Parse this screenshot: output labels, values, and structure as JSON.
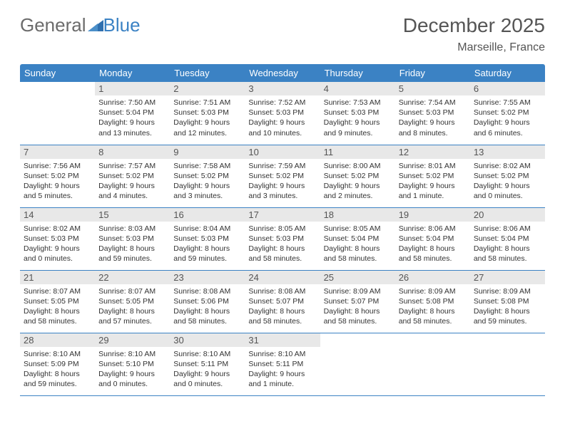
{
  "brand": {
    "part1": "General",
    "part2": "Blue"
  },
  "title": "December 2025",
  "location": "Marseille, France",
  "colors": {
    "header_bg": "#3b82c4",
    "header_text": "#ffffff",
    "daynum_bg": "#e8e8e8",
    "border": "#3b82c4",
    "logo_gray": "#6b6b6b",
    "logo_blue": "#3b82c4"
  },
  "typography": {
    "title_fontsize": 28,
    "location_fontsize": 16,
    "header_fontsize": 13,
    "daynum_fontsize": 13,
    "cell_fontsize": 10.5
  },
  "day_headers": [
    "Sunday",
    "Monday",
    "Tuesday",
    "Wednesday",
    "Thursday",
    "Friday",
    "Saturday"
  ],
  "weeks": [
    [
      {
        "num": "",
        "sunrise": "",
        "sunset": "",
        "daylight": ""
      },
      {
        "num": "1",
        "sunrise": "Sunrise: 7:50 AM",
        "sunset": "Sunset: 5:04 PM",
        "daylight": "Daylight: 9 hours and 13 minutes."
      },
      {
        "num": "2",
        "sunrise": "Sunrise: 7:51 AM",
        "sunset": "Sunset: 5:03 PM",
        "daylight": "Daylight: 9 hours and 12 minutes."
      },
      {
        "num": "3",
        "sunrise": "Sunrise: 7:52 AM",
        "sunset": "Sunset: 5:03 PM",
        "daylight": "Daylight: 9 hours and 10 minutes."
      },
      {
        "num": "4",
        "sunrise": "Sunrise: 7:53 AM",
        "sunset": "Sunset: 5:03 PM",
        "daylight": "Daylight: 9 hours and 9 minutes."
      },
      {
        "num": "5",
        "sunrise": "Sunrise: 7:54 AM",
        "sunset": "Sunset: 5:03 PM",
        "daylight": "Daylight: 9 hours and 8 minutes."
      },
      {
        "num": "6",
        "sunrise": "Sunrise: 7:55 AM",
        "sunset": "Sunset: 5:02 PM",
        "daylight": "Daylight: 9 hours and 6 minutes."
      }
    ],
    [
      {
        "num": "7",
        "sunrise": "Sunrise: 7:56 AM",
        "sunset": "Sunset: 5:02 PM",
        "daylight": "Daylight: 9 hours and 5 minutes."
      },
      {
        "num": "8",
        "sunrise": "Sunrise: 7:57 AM",
        "sunset": "Sunset: 5:02 PM",
        "daylight": "Daylight: 9 hours and 4 minutes."
      },
      {
        "num": "9",
        "sunrise": "Sunrise: 7:58 AM",
        "sunset": "Sunset: 5:02 PM",
        "daylight": "Daylight: 9 hours and 3 minutes."
      },
      {
        "num": "10",
        "sunrise": "Sunrise: 7:59 AM",
        "sunset": "Sunset: 5:02 PM",
        "daylight": "Daylight: 9 hours and 3 minutes."
      },
      {
        "num": "11",
        "sunrise": "Sunrise: 8:00 AM",
        "sunset": "Sunset: 5:02 PM",
        "daylight": "Daylight: 9 hours and 2 minutes."
      },
      {
        "num": "12",
        "sunrise": "Sunrise: 8:01 AM",
        "sunset": "Sunset: 5:02 PM",
        "daylight": "Daylight: 9 hours and 1 minute."
      },
      {
        "num": "13",
        "sunrise": "Sunrise: 8:02 AM",
        "sunset": "Sunset: 5:02 PM",
        "daylight": "Daylight: 9 hours and 0 minutes."
      }
    ],
    [
      {
        "num": "14",
        "sunrise": "Sunrise: 8:02 AM",
        "sunset": "Sunset: 5:03 PM",
        "daylight": "Daylight: 9 hours and 0 minutes."
      },
      {
        "num": "15",
        "sunrise": "Sunrise: 8:03 AM",
        "sunset": "Sunset: 5:03 PM",
        "daylight": "Daylight: 8 hours and 59 minutes."
      },
      {
        "num": "16",
        "sunrise": "Sunrise: 8:04 AM",
        "sunset": "Sunset: 5:03 PM",
        "daylight": "Daylight: 8 hours and 59 minutes."
      },
      {
        "num": "17",
        "sunrise": "Sunrise: 8:05 AM",
        "sunset": "Sunset: 5:03 PM",
        "daylight": "Daylight: 8 hours and 58 minutes."
      },
      {
        "num": "18",
        "sunrise": "Sunrise: 8:05 AM",
        "sunset": "Sunset: 5:04 PM",
        "daylight": "Daylight: 8 hours and 58 minutes."
      },
      {
        "num": "19",
        "sunrise": "Sunrise: 8:06 AM",
        "sunset": "Sunset: 5:04 PM",
        "daylight": "Daylight: 8 hours and 58 minutes."
      },
      {
        "num": "20",
        "sunrise": "Sunrise: 8:06 AM",
        "sunset": "Sunset: 5:04 PM",
        "daylight": "Daylight: 8 hours and 58 minutes."
      }
    ],
    [
      {
        "num": "21",
        "sunrise": "Sunrise: 8:07 AM",
        "sunset": "Sunset: 5:05 PM",
        "daylight": "Daylight: 8 hours and 58 minutes."
      },
      {
        "num": "22",
        "sunrise": "Sunrise: 8:07 AM",
        "sunset": "Sunset: 5:05 PM",
        "daylight": "Daylight: 8 hours and 57 minutes."
      },
      {
        "num": "23",
        "sunrise": "Sunrise: 8:08 AM",
        "sunset": "Sunset: 5:06 PM",
        "daylight": "Daylight: 8 hours and 58 minutes."
      },
      {
        "num": "24",
        "sunrise": "Sunrise: 8:08 AM",
        "sunset": "Sunset: 5:07 PM",
        "daylight": "Daylight: 8 hours and 58 minutes."
      },
      {
        "num": "25",
        "sunrise": "Sunrise: 8:09 AM",
        "sunset": "Sunset: 5:07 PM",
        "daylight": "Daylight: 8 hours and 58 minutes."
      },
      {
        "num": "26",
        "sunrise": "Sunrise: 8:09 AM",
        "sunset": "Sunset: 5:08 PM",
        "daylight": "Daylight: 8 hours and 58 minutes."
      },
      {
        "num": "27",
        "sunrise": "Sunrise: 8:09 AM",
        "sunset": "Sunset: 5:08 PM",
        "daylight": "Daylight: 8 hours and 59 minutes."
      }
    ],
    [
      {
        "num": "28",
        "sunrise": "Sunrise: 8:10 AM",
        "sunset": "Sunset: 5:09 PM",
        "daylight": "Daylight: 8 hours and 59 minutes."
      },
      {
        "num": "29",
        "sunrise": "Sunrise: 8:10 AM",
        "sunset": "Sunset: 5:10 PM",
        "daylight": "Daylight: 9 hours and 0 minutes."
      },
      {
        "num": "30",
        "sunrise": "Sunrise: 8:10 AM",
        "sunset": "Sunset: 5:11 PM",
        "daylight": "Daylight: 9 hours and 0 minutes."
      },
      {
        "num": "31",
        "sunrise": "Sunrise: 8:10 AM",
        "sunset": "Sunset: 5:11 PM",
        "daylight": "Daylight: 9 hours and 1 minute."
      },
      {
        "num": "",
        "sunrise": "",
        "sunset": "",
        "daylight": ""
      },
      {
        "num": "",
        "sunrise": "",
        "sunset": "",
        "daylight": ""
      },
      {
        "num": "",
        "sunrise": "",
        "sunset": "",
        "daylight": ""
      }
    ]
  ]
}
